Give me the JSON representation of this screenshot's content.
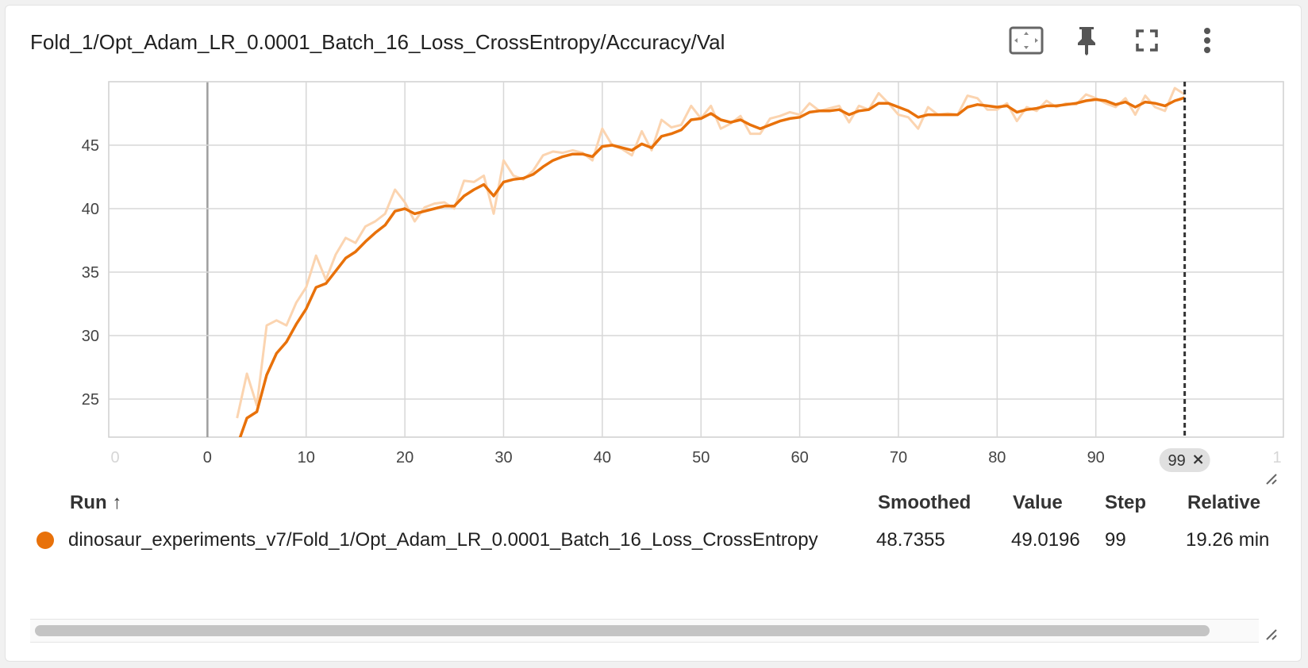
{
  "card": {
    "title": "Fold_1/Opt_Adam_LR_0.0001_Batch_16_Loss_CrossEntropy/Accuracy/Val",
    "tools": [
      "fit-domain-icon",
      "pin-icon",
      "fullscreen-icon",
      "more-vert-icon"
    ]
  },
  "colors": {
    "accent": "#e8710a",
    "accent_faint": "#fbd4b0",
    "grid": "#d7d7d7",
    "cursor": "#333333"
  },
  "chart_data": {
    "type": "line",
    "title": "",
    "xlabel": "",
    "ylabel": "",
    "xlim": [
      -10,
      109
    ],
    "ylim": [
      22,
      50
    ],
    "x_ticks": [
      0,
      10,
      20,
      30,
      40,
      50,
      60,
      70,
      80,
      90
    ],
    "x_tick_labels": [
      "0",
      "10",
      "20",
      "30",
      "40",
      "50",
      "60",
      "70",
      "80",
      "90"
    ],
    "x_faint_tick_labels": [
      "0",
      "1"
    ],
    "y_ticks": [
      25,
      30,
      35,
      40,
      45
    ],
    "y_tick_labels": [
      "25",
      "30",
      "35",
      "40",
      "45"
    ],
    "grid": true,
    "cursor_step_label": "99",
    "cursor_step": 99,
    "x": [
      3,
      4,
      5,
      6,
      7,
      8,
      9,
      10,
      11,
      12,
      13,
      14,
      15,
      16,
      17,
      18,
      19,
      20,
      21,
      22,
      23,
      24,
      25,
      26,
      27,
      28,
      29,
      30,
      31,
      32,
      33,
      34,
      35,
      36,
      37,
      38,
      39,
      40,
      41,
      42,
      43,
      44,
      45,
      46,
      47,
      48,
      49,
      50,
      51,
      52,
      53,
      54,
      55,
      56,
      57,
      58,
      59,
      60,
      61,
      62,
      63,
      64,
      65,
      66,
      67,
      68,
      69,
      70,
      71,
      72,
      73,
      74,
      75,
      76,
      77,
      78,
      79,
      80,
      81,
      82,
      83,
      84,
      85,
      86,
      87,
      88,
      89,
      90,
      91,
      92,
      93,
      94,
      95,
      96,
      97,
      98,
      99
    ],
    "series": [
      {
        "name": "",
        "role": "raw",
        "values": [
          23.5,
          27.0,
          24.5,
          30.8,
          31.2,
          30.8,
          32.6,
          33.8,
          36.3,
          34.4,
          36.4,
          37.7,
          37.3,
          38.6,
          39.0,
          39.6,
          41.5,
          40.5,
          39.0,
          40.1,
          40.4,
          40.5,
          40.0,
          42.2,
          42.1,
          42.6,
          39.6,
          43.8,
          42.6,
          42.3,
          43.0,
          44.2,
          44.5,
          44.4,
          44.6,
          44.4,
          43.8,
          46.3,
          45.0,
          44.7,
          44.2,
          46.1,
          44.6,
          47.0,
          46.4,
          46.6,
          48.1,
          47.1,
          48.1,
          46.3,
          46.7,
          47.3,
          45.9,
          45.9,
          47.1,
          47.3,
          47.6,
          47.4,
          48.3,
          47.7,
          47.9,
          48.1,
          46.8,
          48.1,
          47.8,
          49.1,
          48.3,
          47.4,
          47.2,
          46.3,
          48.0,
          47.4,
          47.5,
          47.4,
          48.9,
          48.7,
          47.8,
          47.8,
          48.3,
          46.9,
          48.0,
          47.7,
          48.5,
          48.0,
          48.3,
          48.2,
          49.0,
          48.7,
          48.3,
          48.0,
          48.7,
          47.4,
          48.9,
          48.0,
          47.7,
          49.5,
          49.0
        ]
      },
      {
        "name": "",
        "role": "smoothed",
        "values": [
          21.3,
          23.5,
          24.0,
          26.9,
          28.6,
          29.5,
          30.9,
          32.1,
          33.8,
          34.1,
          35.1,
          36.1,
          36.6,
          37.4,
          38.1,
          38.7,
          39.8,
          40.0,
          39.6,
          39.8,
          40.0,
          40.2,
          40.2,
          41.0,
          41.5,
          41.9,
          41.0,
          42.1,
          42.3,
          42.4,
          42.7,
          43.3,
          43.8,
          44.1,
          44.3,
          44.3,
          44.1,
          44.9,
          45.0,
          44.8,
          44.6,
          45.1,
          44.8,
          45.7,
          45.9,
          46.2,
          47.0,
          47.1,
          47.5,
          47.0,
          46.8,
          47.0,
          46.6,
          46.3,
          46.6,
          46.9,
          47.1,
          47.2,
          47.6,
          47.7,
          47.7,
          47.8,
          47.4,
          47.7,
          47.8,
          48.3,
          48.3,
          48.0,
          47.7,
          47.2,
          47.4,
          47.4,
          47.4,
          47.4,
          48.0,
          48.2,
          48.1,
          48.0,
          48.1,
          47.6,
          47.8,
          47.9,
          48.1,
          48.1,
          48.2,
          48.3,
          48.5,
          48.6,
          48.5,
          48.2,
          48.4,
          48.0,
          48.4,
          48.3,
          48.1,
          48.5,
          48.7355
        ]
      }
    ]
  },
  "table": {
    "headers": {
      "run": "Run ↑",
      "smoothed": "Smoothed",
      "value": "Value",
      "step": "Step",
      "relative": "Relative"
    },
    "rows": [
      {
        "run": "dinosaur_experiments_v7/Fold_1/Opt_Adam_LR_0.0001_Batch_16_Loss_CrossEntropy",
        "smoothed": "48.7355",
        "value": "49.0196",
        "step": "99",
        "relative": "19.26 min"
      }
    ]
  }
}
